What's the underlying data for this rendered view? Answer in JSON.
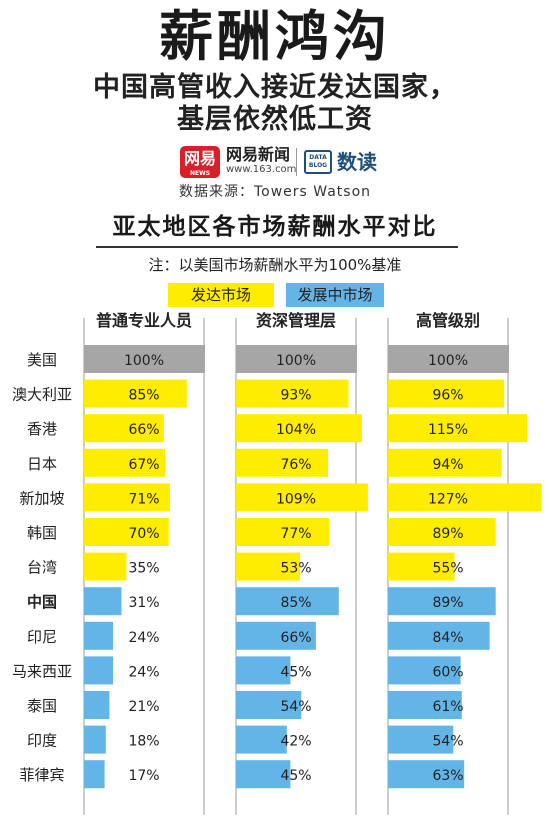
{
  "header": {
    "title": "薪酬鸿沟",
    "subtitle_line1": "中国高管收入接近发达国家，",
    "subtitle_line2": "基层依然低工资",
    "logo_text": "网易",
    "logo_small_text": "NEWS",
    "brand_name": "网易新闻",
    "brand_url": "www.163.com",
    "datablog_text": "DATA BLOG",
    "column_name": "数读",
    "source": "数据来源：Towers Watson"
  },
  "chart_data": {
    "type": "bar",
    "title": "亚太地区各市场薪酬水平对比",
    "note": "注：以美国市场薪酬水平为100%基准",
    "legend": [
      {
        "label": "发达市场",
        "color": "#ffed00"
      },
      {
        "label": "发展中市场",
        "color": "#63b5e8"
      }
    ],
    "reference_color": "#a6a6a6",
    "categories": [
      "美国",
      "澳大利亚",
      "香港",
      "日本",
      "新加坡",
      "韩国",
      "台湾",
      "中国",
      "印尼",
      "马来西亚",
      "泰国",
      "印度",
      "菲律宾"
    ],
    "category_group": [
      "reference",
      "developed",
      "developed",
      "developed",
      "developed",
      "developed",
      "developed",
      "developing",
      "developing",
      "developing",
      "developing",
      "developing",
      "developing"
    ],
    "highlight_category": "中国",
    "series": [
      {
        "name": "普通专业人员",
        "values": [
          100,
          85,
          66,
          67,
          71,
          70,
          35,
          31,
          24,
          24,
          21,
          18,
          17
        ]
      },
      {
        "name": "资深管理层",
        "values": [
          100,
          93,
          104,
          76,
          109,
          77,
          53,
          85,
          66,
          45,
          54,
          42,
          45
        ]
      },
      {
        "name": "高管级别",
        "values": [
          100,
          96,
          115,
          94,
          127,
          89,
          55,
          89,
          84,
          60,
          61,
          54,
          63
        ]
      }
    ],
    "value_suffix": "%"
  }
}
